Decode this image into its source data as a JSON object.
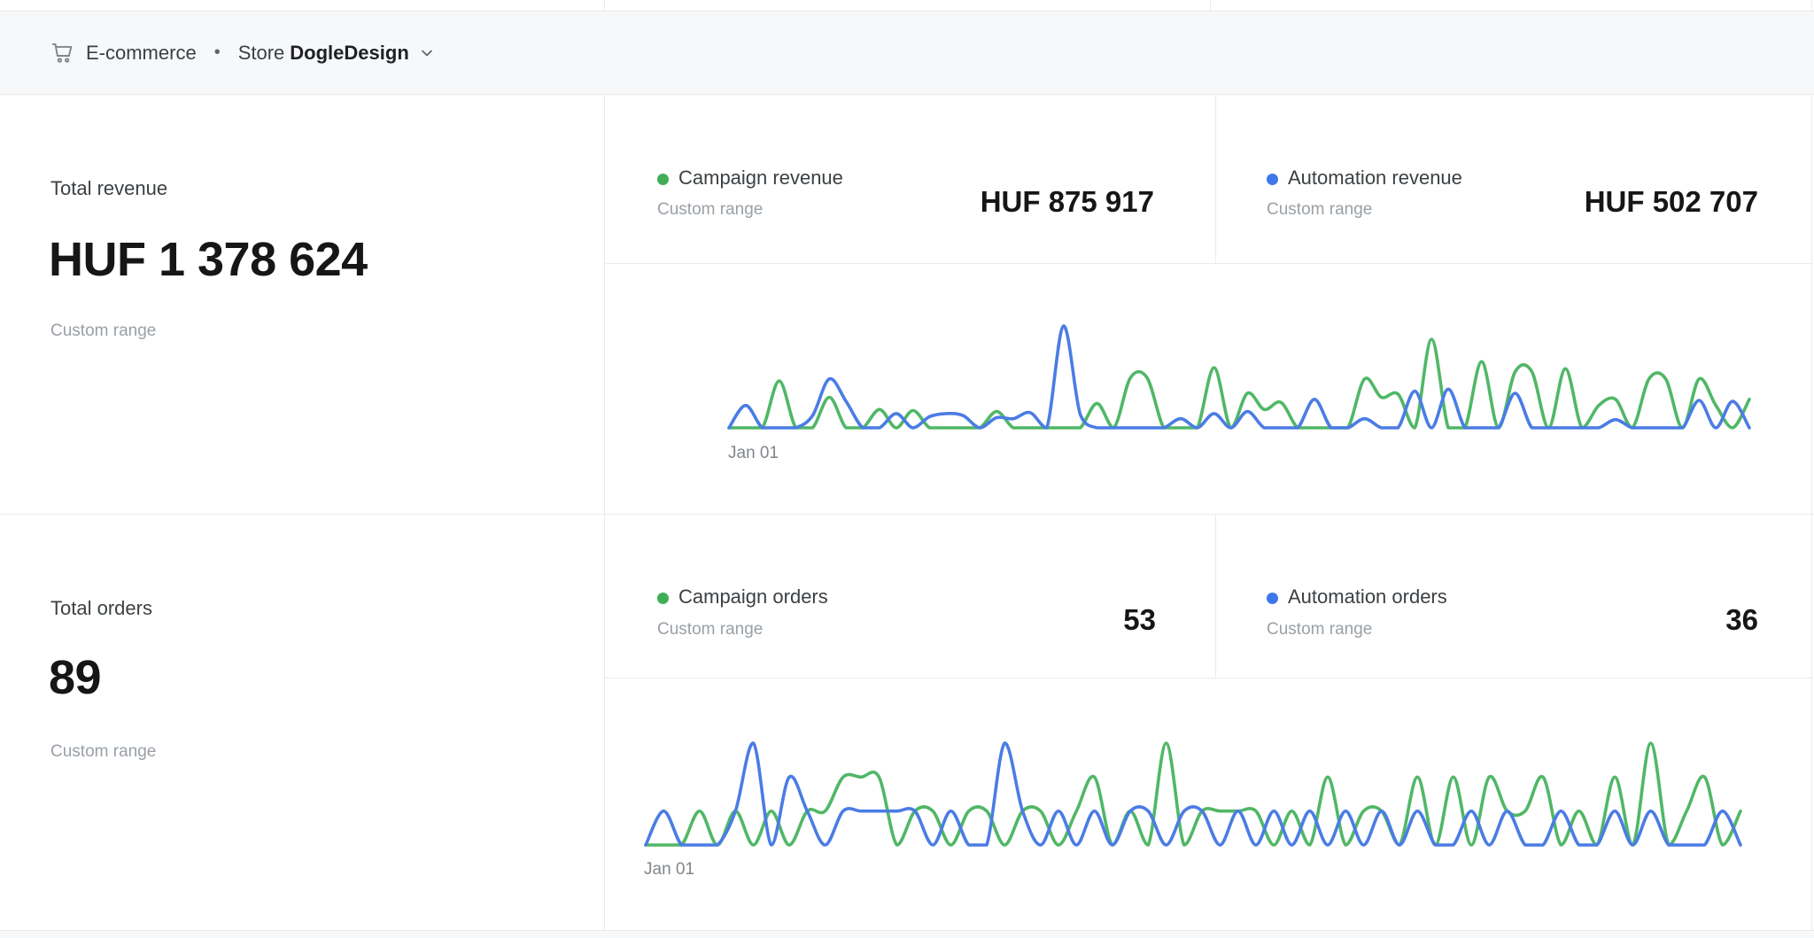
{
  "header": {
    "breadcrumb": "E-commerce",
    "separator": "•",
    "store_prefix": "Store",
    "store_name": "DogleDesign"
  },
  "summary": {
    "total_revenue": {
      "label": "Total revenue",
      "value": "HUF 1 378 624",
      "range": "Custom range"
    },
    "total_orders": {
      "label": "Total orders",
      "value": "89",
      "range": "Custom range"
    }
  },
  "revenue": {
    "campaign": {
      "label": "Campaign revenue",
      "range": "Custom range",
      "value": "HUF 875 917"
    },
    "automation": {
      "label": "Automation revenue",
      "range": "Custom range",
      "value": "HUF 502 707"
    },
    "x_tick": "Jan 01"
  },
  "orders": {
    "campaign": {
      "label": "Campaign orders",
      "range": "Custom range",
      "value": "53"
    },
    "automation": {
      "label": "Automation orders",
      "range": "Custom range",
      "value": "36"
    },
    "x_tick": "Jan 01"
  },
  "colors": {
    "campaign_line": "#50b767",
    "automation_line": "#4b7ce4",
    "campaign_dot": "#3fae57",
    "automation_dot": "#3e77e8"
  },
  "chart_data": [
    {
      "type": "line",
      "name": "daily-revenue",
      "x_tick_labels": [
        "Jan 01"
      ],
      "ymax": 100,
      "ylim": [
        0,
        100
      ],
      "grid": false,
      "legend_position": "header-cells-above",
      "note": "y-axis unlabeled; values are relative heights (100 = tallest spike)",
      "series": [
        {
          "name": "Campaign revenue",
          "color": "#50b767",
          "values": [
            0,
            0,
            0,
            46,
            0,
            0,
            30,
            0,
            0,
            18,
            0,
            17,
            0,
            0,
            0,
            0,
            16,
            0,
            0,
            0,
            0,
            0,
            24,
            0,
            49,
            49,
            0,
            0,
            0,
            59,
            0,
            34,
            18,
            25,
            0,
            0,
            0,
            0,
            48,
            30,
            33,
            0,
            87,
            0,
            0,
            65,
            0,
            55,
            55,
            0,
            58,
            0,
            22,
            28,
            0,
            48,
            48,
            0,
            48,
            22,
            0,
            28
          ]
        },
        {
          "name": "Automation revenue",
          "color": "#4b7ce4",
          "values": [
            0,
            22,
            0,
            0,
            0,
            12,
            48,
            26,
            0,
            0,
            14,
            0,
            11,
            14,
            12,
            0,
            10,
            9,
            15,
            0,
            100,
            13,
            0,
            0,
            0,
            0,
            0,
            9,
            0,
            14,
            0,
            16,
            0,
            0,
            0,
            28,
            0,
            0,
            9,
            0,
            0,
            36,
            0,
            38,
            0,
            0,
            0,
            34,
            0,
            0,
            0,
            0,
            0,
            8,
            0,
            0,
            0,
            0,
            27,
            0,
            26,
            0
          ]
        }
      ]
    },
    {
      "type": "line",
      "name": "daily-orders",
      "x_tick_labels": [
        "Jan 01"
      ],
      "ymax": 3,
      "ylim": [
        0,
        3
      ],
      "grid": false,
      "legend_position": "header-cells-above",
      "note": "daily order counts; campaign sums to 53, automation sums to 36",
      "series": [
        {
          "name": "Campaign orders",
          "color": "#50b767",
          "values": [
            0,
            0,
            0,
            1,
            0,
            1,
            0,
            1,
            0,
            1,
            1,
            2,
            2,
            2,
            0,
            1,
            1,
            0,
            1,
            1,
            0,
            1,
            1,
            0,
            1,
            2,
            0,
            1,
            0,
            3,
            0,
            1,
            1,
            1,
            1,
            0,
            1,
            0,
            2,
            0,
            1,
            1,
            0,
            2,
            0,
            2,
            0,
            2,
            1,
            1,
            2,
            0,
            1,
            0,
            2,
            0,
            3,
            0,
            1,
            2,
            0,
            1
          ]
        },
        {
          "name": "Automation orders",
          "color": "#4b7ce4",
          "values": [
            0,
            1,
            0,
            0,
            0,
            1,
            3,
            0,
            2,
            1,
            0,
            1,
            1,
            1,
            1,
            1,
            0,
            1,
            0,
            0,
            3,
            1,
            0,
            1,
            0,
            1,
            0,
            1,
            1,
            0,
            1,
            1,
            0,
            1,
            0,
            1,
            0,
            1,
            0,
            1,
            0,
            1,
            0,
            1,
            0,
            0,
            1,
            0,
            1,
            0,
            0,
            1,
            0,
            0,
            1,
            0,
            1,
            0,
            0,
            0,
            1,
            0
          ]
        }
      ]
    }
  ]
}
